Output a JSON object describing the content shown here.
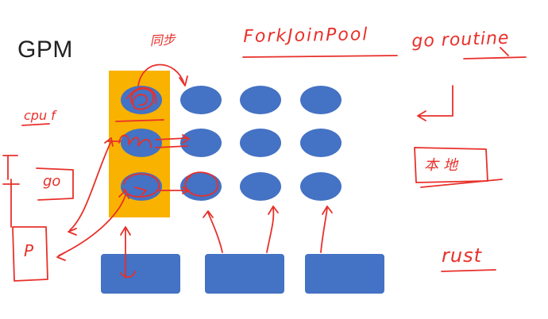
{
  "title": "GPM",
  "annotations": {
    "top_chars": "同步",
    "forkjoin": "ForkJoinPool",
    "goroutine": "go routine",
    "cpu": "cpu f",
    "go": "go",
    "p": "P",
    "local": "本地",
    "rust": "rust"
  },
  "colors": {
    "column_highlight": "#f9b200",
    "node_fill": "#4472c4",
    "box_fill": "#4472c4",
    "ink": "#e8302a",
    "background": "#ffffff"
  }
}
